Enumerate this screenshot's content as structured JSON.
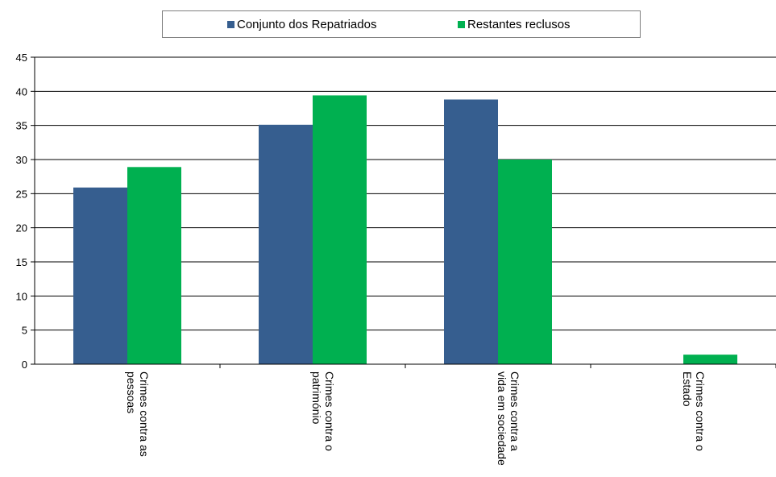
{
  "chart_data": {
    "type": "bar",
    "categories": [
      [
        "Crimes contra as",
        "pessoas"
      ],
      [
        "Crimes contra o",
        "património"
      ],
      [
        "Crimes contra a",
        "vida em sociedade"
      ],
      [
        "Crimes contra o",
        "Estado"
      ]
    ],
    "series": [
      {
        "name": "Conjunto dos Repatriados",
        "color": "#365e8f",
        "values": [
          25.9,
          35.1,
          38.8,
          0
        ]
      },
      {
        "name": "Restantes reclusos",
        "color": "#00b050",
        "values": [
          28.9,
          39.4,
          30.0,
          1.4
        ]
      }
    ],
    "ylim": [
      0,
      45
    ],
    "yticks": [
      0,
      5,
      10,
      15,
      20,
      25,
      30,
      35,
      40,
      45
    ],
    "grid": true,
    "legend": "top"
  }
}
